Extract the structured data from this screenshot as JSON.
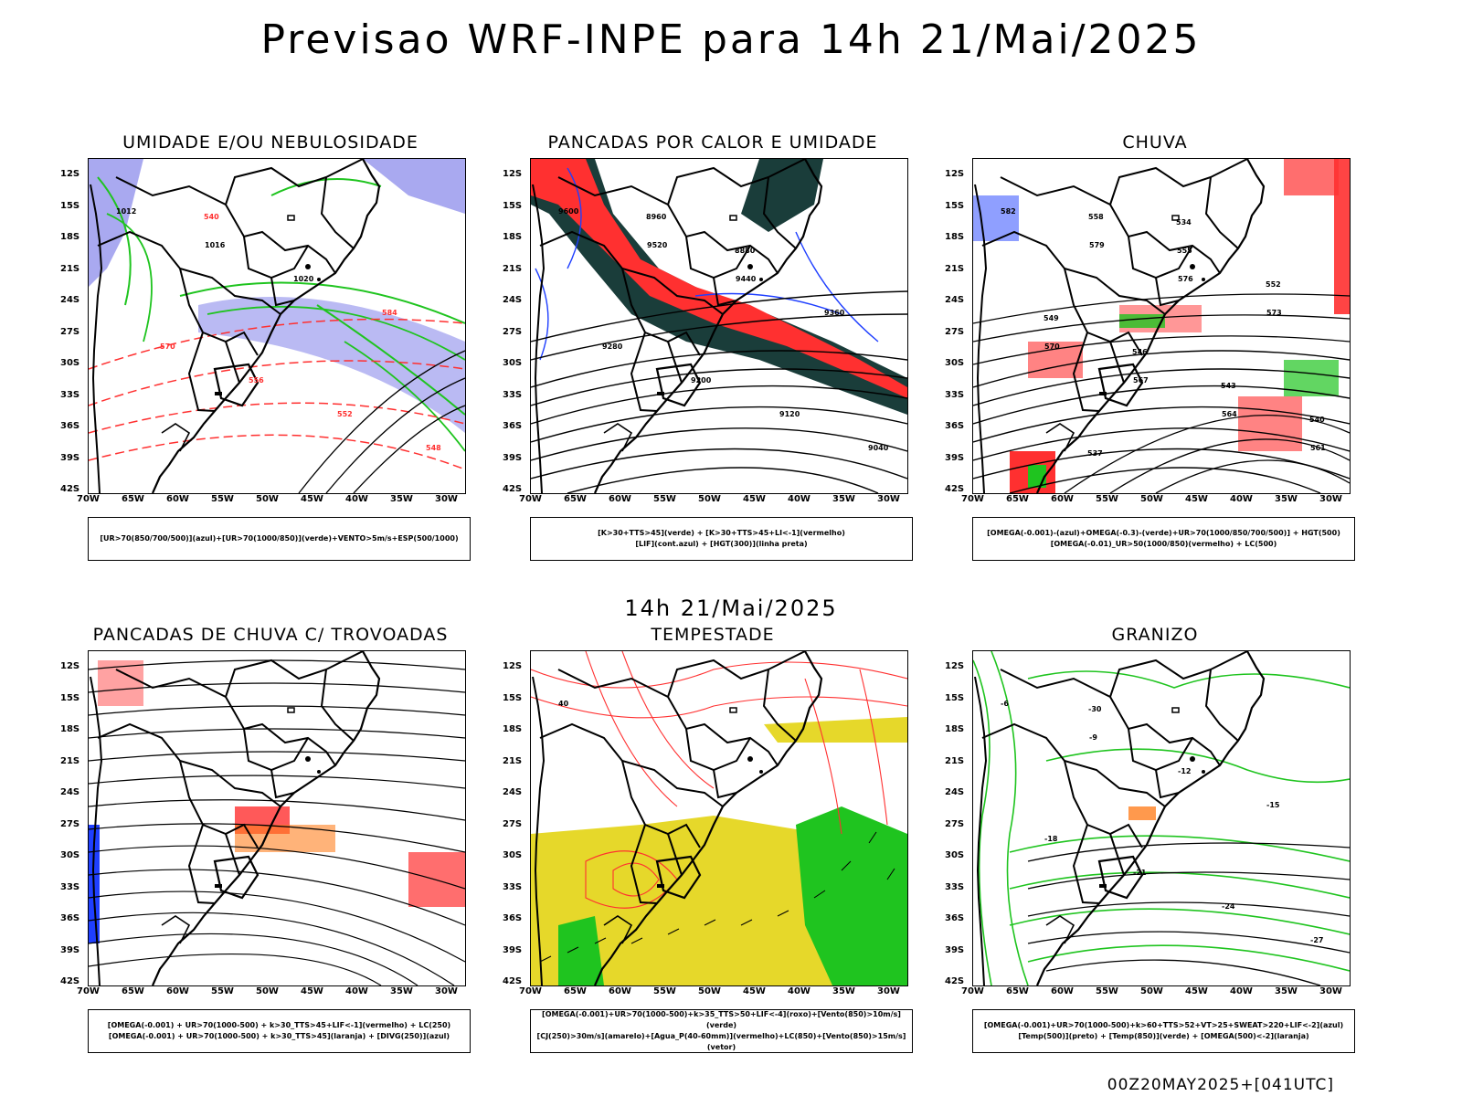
{
  "title": "Previsao WRF-INPE  para 14h 21/Mai/2025",
  "mid_title": "14h 21/Mai/2025",
  "footer": "00Z20MAY2025+[041UTC]",
  "lat_labels": [
    "12S",
    "15S",
    "18S",
    "21S",
    "24S",
    "27S",
    "30S",
    "33S",
    "36S",
    "39S",
    "42S"
  ],
  "lon_labels": [
    "70W",
    "65W",
    "60W",
    "55W",
    "50W",
    "45W",
    "40W",
    "35W",
    "30W"
  ],
  "colors": {
    "blue": "#1f3fff",
    "green": "#1fc41f",
    "red": "#ff3030",
    "orange": "#ff8020",
    "yellow": "#e6d82a",
    "darkteal": "#1a3d3a",
    "lavender": "#a9a9f0"
  },
  "panels": [
    {
      "title": "UMIDADE E/OU NEBULOSIDADE",
      "legend": [
        "[UR>70(850/700/500)](azul)+[UR>70(1000/850)](verde)+VENTO>5m/s+ESP(500/1000)"
      ],
      "contour_labels": [
        "1012",
        "1016",
        "1020",
        "584",
        "570",
        "556",
        "552",
        "548",
        "540"
      ]
    },
    {
      "title": "PANCADAS POR CALOR E UMIDADE",
      "legend": [
        "[K>30+TTS>45](verde) + [K>30+TTS>45+LI<-1](vermelho)",
        "[LIF](cont.azul) + [HGT(300)](linha preta)"
      ],
      "contour_labels": [
        "9600",
        "9520",
        "9440",
        "9360",
        "9280",
        "9200",
        "9120",
        "9040",
        "8960",
        "8880"
      ]
    },
    {
      "title": "CHUVA",
      "legend": [
        "[OMEGA(-0.001)-(azul)+OMEGA(-0.3)-(verde)+UR>70(1000/850/700/500)] + HGT(500)",
        "[OMEGA(-0.01)_UR>50(1000/850)(vermelho) + LC(500)"
      ],
      "contour_labels": [
        "582",
        "579",
        "576",
        "573",
        "570",
        "567",
        "564",
        "561",
        "558",
        "555",
        "552",
        "549",
        "546",
        "543",
        "540",
        "537",
        "534"
      ]
    },
    {
      "title": "PANCADAS DE CHUVA C/ TROVOADAS",
      "legend": [
        "[OMEGA(-0.001) + UR>70(1000-500) + k>30_TTS>45+LIF<-1](vermelho) + LC(250)",
        "[OMEGA(-0.001) + UR>70(1000-500) + k>30_TTS>45](laranja) + [DIVG(250)](azul)"
      ],
      "contour_labels": []
    },
    {
      "title": "TEMPESTADE",
      "legend": [
        "[OMEGA(-0.001)+UR>70(1000-500)+k>35_TTS>50+LIF<-4](roxo)+[Vento(850)>10m/s](verde)",
        "[CJ(250)>30m/s](amarelo)+[Agua_P(40-60mm)](vermelho)+LC(850)+[Vento(850)>15m/s](vetor)"
      ],
      "contour_labels": [
        "40"
      ]
    },
    {
      "title": "GRANIZO",
      "legend": [
        "[OMEGA(-0.001)+UR>70(1000-500)+k>60+TTS>52+VT>25+SWEAT>220+LIF<-2](azul)",
        "[Temp(500)](preto) + [Temp(850)](verde) + [OMEGA(500)<-2](laranja)"
      ],
      "contour_labels": [
        "-6",
        "-9",
        "-12",
        "-15",
        "-18",
        "-21",
        "-24",
        "-27",
        "-30"
      ]
    }
  ]
}
